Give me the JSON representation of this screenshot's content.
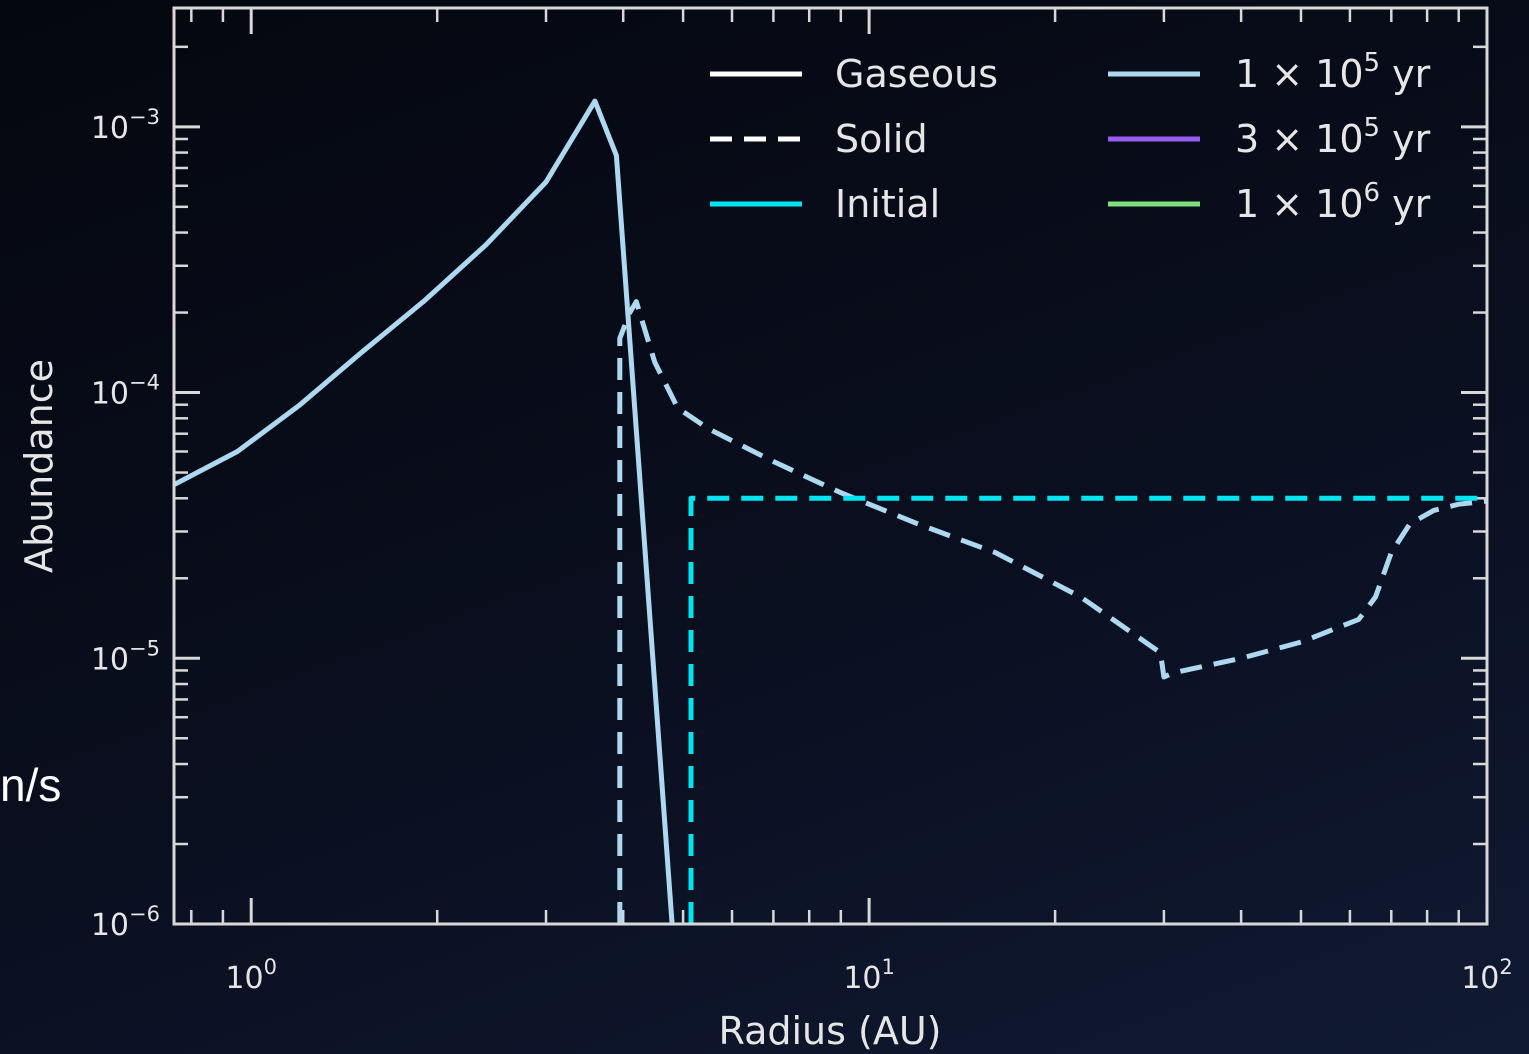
{
  "side_fragment": "n/s",
  "chart_data": {
    "type": "line",
    "title": "",
    "xlabel": "Radius (AU)",
    "ylabel": "Abundance",
    "xscale": "log",
    "yscale": "log",
    "xlim": [
      0.75,
      100
    ],
    "ylim": [
      1e-06,
      0.0028
    ],
    "x_ticks": [
      {
        "value": 1,
        "base": "10",
        "exp": "0"
      },
      {
        "value": 10,
        "base": "10",
        "exp": "1"
      },
      {
        "value": 100,
        "base": "10",
        "exp": "2"
      }
    ],
    "y_ticks": [
      {
        "value": 1e-06,
        "base": "10",
        "exp": "−6"
      },
      {
        "value": 1e-05,
        "base": "10",
        "exp": "−5"
      },
      {
        "value": 0.0001,
        "base": "10",
        "exp": "−4"
      },
      {
        "value": 0.001,
        "base": "10",
        "exp": "−3"
      }
    ],
    "grid": false,
    "legend_position": "top-right",
    "legend": [
      {
        "label": "Gaseous",
        "color": "#ffffff",
        "dash": "solid"
      },
      {
        "label": "Solid",
        "color": "#ffffff",
        "dash": "dashed"
      },
      {
        "label": "Initial",
        "color": "#00e5f0",
        "dash": "solid"
      },
      {
        "label": "1 × 10",
        "sup": "5",
        "suffix": " yr",
        "color": "#add8f0",
        "dash": "solid"
      },
      {
        "label": "3 × 10",
        "sup": "5",
        "suffix": " yr",
        "color": "#9b5cf5",
        "dash": "solid"
      },
      {
        "label": "1 × 10",
        "sup": "6",
        "suffix": " yr",
        "color": "#7ee07a",
        "dash": "solid"
      }
    ],
    "series": [
      {
        "name": "1 × 10^5 yr (gaseous)",
        "color": "#add8f0",
        "dash": "solid",
        "x": [
          0.75,
          0.95,
          1.2,
          1.5,
          1.9,
          2.4,
          3.0,
          3.6,
          3.9,
          4.8
        ],
        "y": [
          4.5e-05,
          6e-05,
          9e-05,
          0.00014,
          0.00022,
          0.00036,
          0.00062,
          0.00125,
          0.00078,
          1e-06
        ]
      },
      {
        "name": "1 × 10^5 yr (solid)",
        "color": "#add8f0",
        "dash": "dashed",
        "x": [
          3.95,
          3.95,
          4.1,
          4.2,
          4.5,
          4.9,
          5.5,
          7,
          9,
          12,
          16,
          22,
          29.6,
          29.8,
          30,
          31,
          40,
          50,
          62,
          66,
          70,
          75,
          82,
          90,
          100
        ],
        "y": [
          1e-06,
          0.00016,
          0.0002,
          0.00022,
          0.00013,
          8.75e-05,
          7.3e-05,
          5.5e-05,
          4.2e-05,
          3.2e-05,
          2.5e-05,
          1.7e-05,
          1.05e-05,
          9.5e-06,
          8.5e-06,
          8.8e-06,
          1e-05,
          1.15e-05,
          1.4e-05,
          1.7e-05,
          2.5e-05,
          3.2e-05,
          3.6e-05,
          3.8e-05,
          3.9e-05
        ]
      },
      {
        "name": "Initial (solid)",
        "color": "#00e5f0",
        "dash": "dashed",
        "x": [
          5.15,
          5.15,
          100
        ],
        "y": [
          1e-06,
          4e-05,
          4e-05
        ]
      }
    ]
  }
}
